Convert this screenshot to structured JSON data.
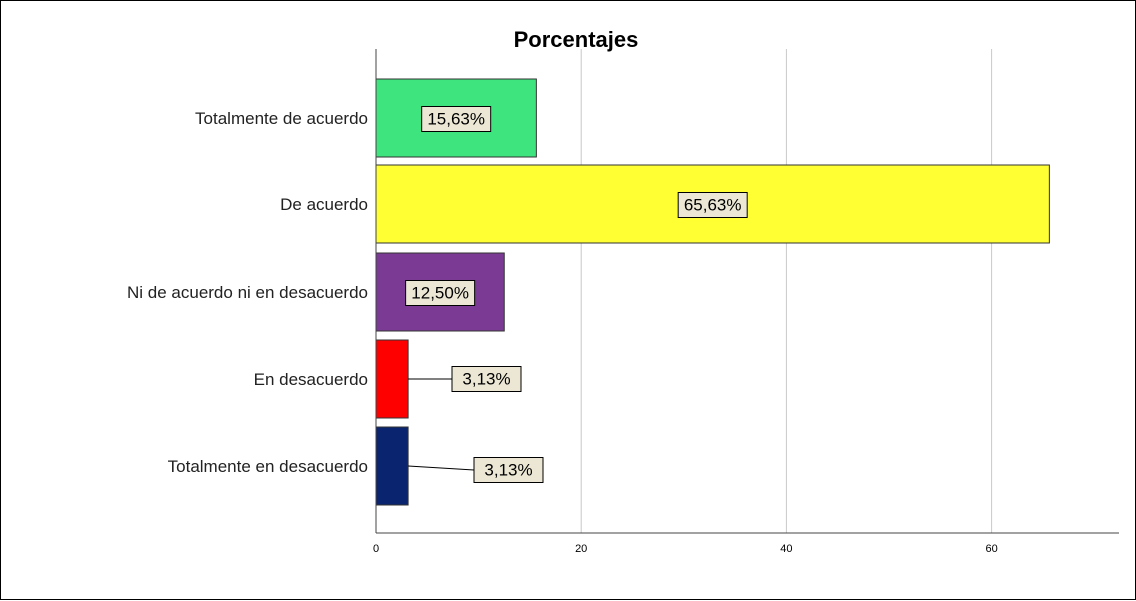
{
  "chart_data": {
    "type": "bar",
    "orientation": "horizontal",
    "title": "Porcentajes",
    "xlabel": "",
    "ylabel": "",
    "categories": [
      "Totalmente de acuerdo",
      "De acuerdo",
      "Ni de acuerdo ni en desacuerdo",
      "En desacuerdo",
      "Totalmente en desacuerdo"
    ],
    "values": [
      15.63,
      65.63,
      12.5,
      3.13,
      3.13
    ],
    "data_labels": [
      "15,63%",
      "65,63%",
      "12,50%",
      "3,13%",
      "3,13%"
    ],
    "colors": [
      "#3ee57e",
      "#ffff33",
      "#7b3b95",
      "#ff0000",
      "#0b2470"
    ],
    "xlim": [
      0,
      73
    ],
    "xticks": [
      0,
      20,
      40,
      60
    ],
    "xtick_labels": [
      "0",
      "20",
      "40",
      "60"
    ],
    "grid": true,
    "legend": "none"
  }
}
